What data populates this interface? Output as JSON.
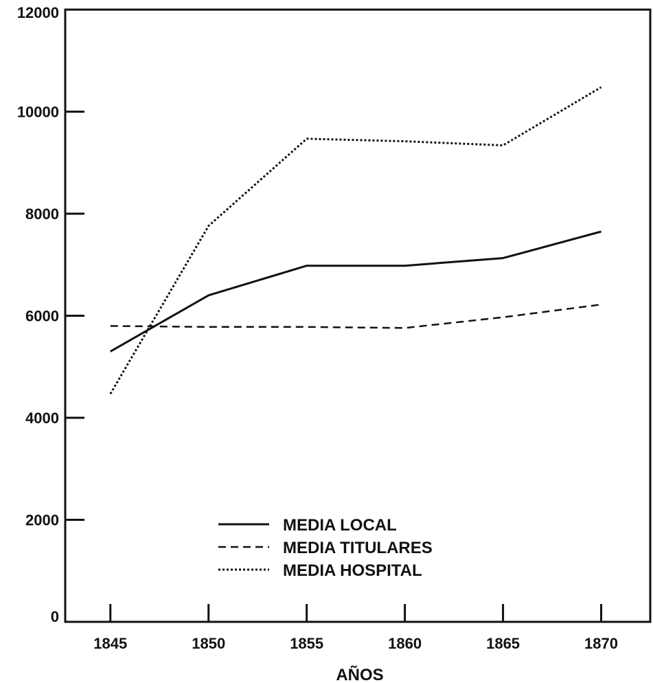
{
  "chart_data": {
    "type": "line",
    "title": "",
    "xlabel": "AÑOS",
    "ylabel": "",
    "x": [
      1845,
      1850,
      1855,
      1860,
      1865,
      1870
    ],
    "xlim": [
      1842.7,
      1872.5
    ],
    "ylim": [
      0,
      12000
    ],
    "xticks": [
      1845,
      1850,
      1855,
      1860,
      1865,
      1870
    ],
    "yticks": [
      0,
      2000,
      4000,
      6000,
      8000,
      10000,
      12000
    ],
    "grid": false,
    "legend": "bottom-center",
    "series": [
      {
        "name": "MEDIA LOCAL",
        "style": "solid",
        "color": "#111111",
        "points": [
          [
            1845,
            5300
          ],
          [
            1850,
            6400
          ],
          [
            1855,
            6980
          ],
          [
            1860,
            6980
          ],
          [
            1865,
            7130
          ],
          [
            1870,
            7650
          ]
        ]
      },
      {
        "name": "MEDIA TITULARES",
        "style": "dashed",
        "color": "#111111",
        "points": [
          [
            1845,
            5800
          ],
          [
            1850,
            5780
          ],
          [
            1855,
            5780
          ],
          [
            1860,
            5760
          ],
          [
            1865,
            5970
          ],
          [
            1870,
            6220
          ]
        ]
      },
      {
        "name": "MEDIA HOSPITAL",
        "style": "dotted",
        "color": "#111111",
        "points": [
          [
            1845,
            4470
          ],
          [
            1850,
            7760
          ],
          [
            1855,
            9470
          ],
          [
            1860,
            9420
          ],
          [
            1865,
            9340
          ],
          [
            1870,
            10480
          ]
        ]
      }
    ]
  }
}
